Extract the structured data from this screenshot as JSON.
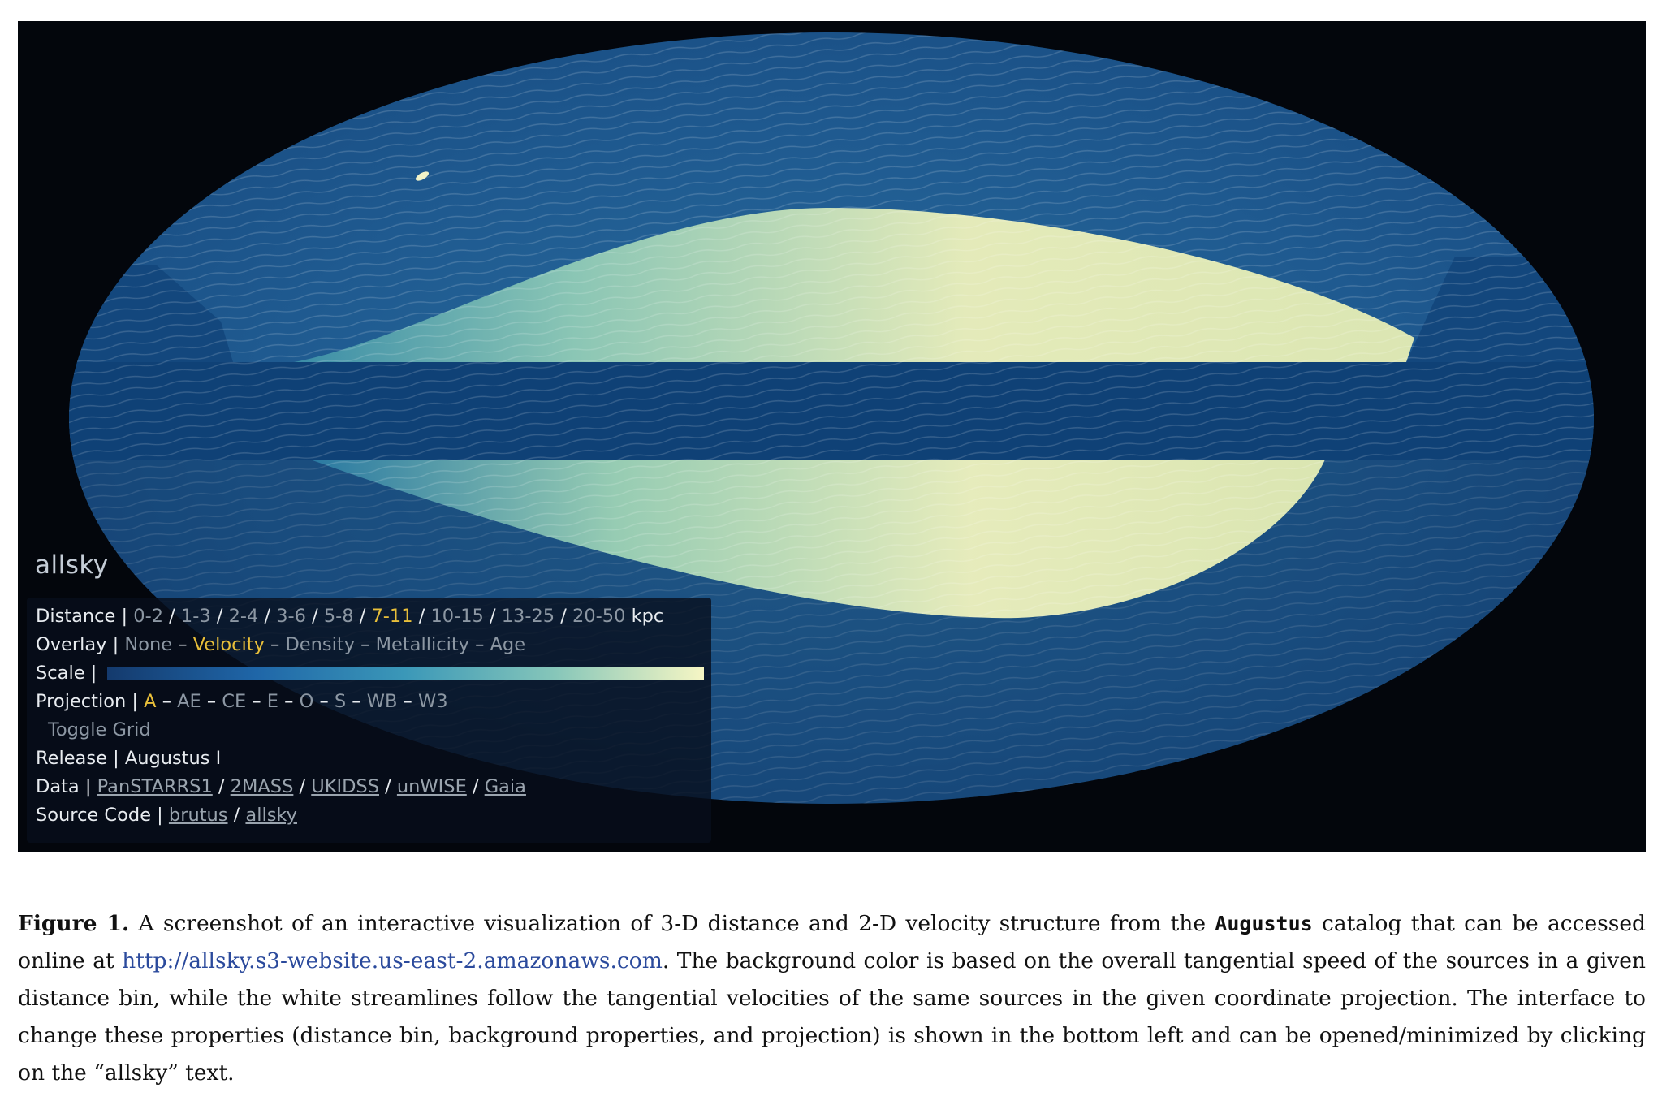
{
  "app": {
    "name": "allsky"
  },
  "panel": {
    "distance": {
      "label": "Distance",
      "options": [
        "0-2",
        "1-3",
        "2-4",
        "3-6",
        "5-8",
        "7-11",
        "10-15",
        "13-25",
        "20-50"
      ],
      "selected": "7-11",
      "unit": "kpc"
    },
    "overlay": {
      "label": "Overlay",
      "options": [
        "None",
        "Velocity",
        "Density",
        "Metallicity",
        "Age"
      ],
      "selected": "Velocity"
    },
    "scale": {
      "label": "Scale",
      "colors": [
        "#143a6d",
        "#1f66a8",
        "#3b98b8",
        "#86c6b9",
        "#f6f6c4"
      ]
    },
    "projection": {
      "label": "Projection",
      "options": [
        "A",
        "AE",
        "CE",
        "E",
        "O",
        "S",
        "WB",
        "W3"
      ],
      "selected": "A"
    },
    "toggle_grid": "Toggle Grid",
    "release": {
      "label": "Release",
      "value": "Augustus I"
    },
    "data": {
      "label": "Data",
      "links": [
        "PanSTARRS1",
        "2MASS",
        "UKIDSS",
        "unWISE",
        "Gaia"
      ]
    },
    "source_code": {
      "label": "Source Code",
      "links": [
        "brutus",
        "allsky"
      ]
    }
  },
  "caption": {
    "figure_label": "Figure 1.",
    "text_1": " A screenshot of an interactive visualization of 3-D distance and 2-D velocity structure from the ",
    "catalog": "Augustus",
    "text_2": " catalog that can be accessed online at ",
    "url": "http://allsky.s3-website.us-east-2.amazonaws.com",
    "text_3": ". The background color is based on the overall tangential speed of the sources in a given distance bin, while the white streamlines follow the tangential velocities of the same sources in the given coordinate projection. The interface to change these properties (distance bin, background properties, and projection) is shown in the bottom left and can be opened/minimized by clicking on the “allsky” text."
  }
}
